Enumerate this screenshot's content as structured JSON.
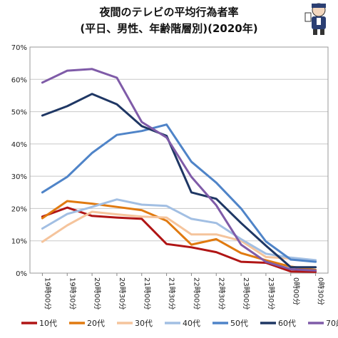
{
  "chart_data": {
    "type": "line",
    "title": "夜間のテレビの平均行為者率",
    "subtitle": "(平日、男性、年齢階層別)(2020年)",
    "categories": [
      "19時00分",
      "19時30分",
      "20時00分",
      "20時30分",
      "21時00分",
      "21時30分",
      "22時00分",
      "22時30分",
      "23時00分",
      "23時30分",
      "0時00分",
      "0時30分"
    ],
    "y_ticks": [
      "0%",
      "10%",
      "20%",
      "30%",
      "40%",
      "50%",
      "60%",
      "70%"
    ],
    "ylim": [
      0,
      70
    ],
    "grid": true,
    "legend_position": "bottom",
    "series": [
      {
        "name": "10代",
        "color": "#b01515",
        "values": [
          17.5,
          20.3,
          17.7,
          17.2,
          16.8,
          9.0,
          8.0,
          6.5,
          3.5,
          3.2,
          0.5,
          0.4
        ]
      },
      {
        "name": "20代",
        "color": "#e07a10",
        "values": [
          17.0,
          22.3,
          21.5,
          20.5,
          19.5,
          16.2,
          8.8,
          10.5,
          6.2,
          4.0,
          2.0,
          1.0
        ]
      },
      {
        "name": "30代",
        "color": "#f5c49c",
        "values": [
          9.7,
          14.8,
          19.0,
          18.2,
          17.5,
          17.2,
          12.0,
          12.0,
          10.0,
          5.0,
          4.5,
          3.8
        ]
      },
      {
        "name": "40代",
        "color": "#a2bfe3",
        "values": [
          13.8,
          18.3,
          20.5,
          22.8,
          21.2,
          20.8,
          16.8,
          15.5,
          10.5,
          6.0,
          4.8,
          4.0
        ]
      },
      {
        "name": "50代",
        "color": "#4f84c8",
        "values": [
          25.0,
          29.8,
          37.2,
          42.8,
          44.0,
          46.0,
          34.5,
          28.0,
          20.0,
          9.8,
          4.2,
          3.5
        ]
      },
      {
        "name": "60代",
        "color": "#1f3764",
        "values": [
          48.8,
          51.7,
          55.5,
          52.3,
          45.5,
          42.5,
          25.0,
          23.0,
          15.5,
          8.5,
          1.8,
          1.8
        ]
      },
      {
        "name": "70歳以上",
        "color": "#7f5ba8",
        "values": [
          59.0,
          62.7,
          63.2,
          60.5,
          46.8,
          42.0,
          29.8,
          21.0,
          8.8,
          3.5,
          1.2,
          0.8
        ]
      }
    ]
  }
}
